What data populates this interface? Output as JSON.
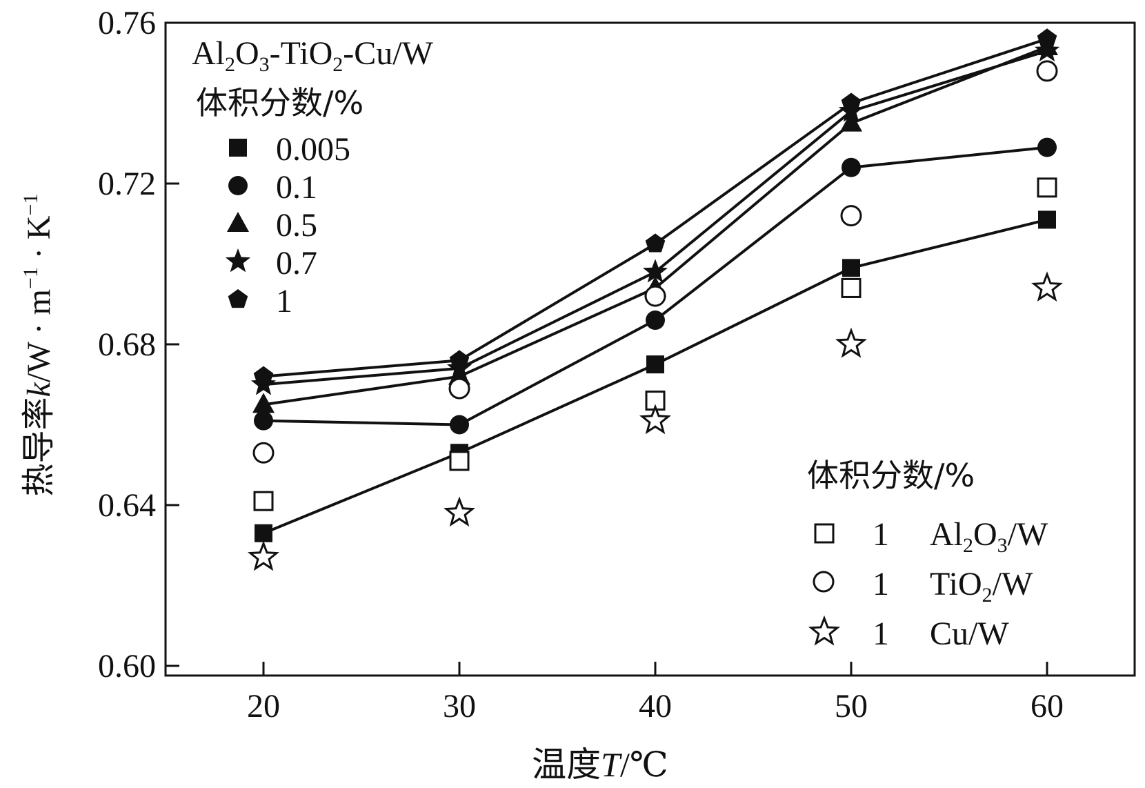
{
  "chart_data": {
    "type": "line",
    "xlabel": {
      "prefix": "温度",
      "var": "T",
      "unit": "/℃"
    },
    "ylabel": {
      "prefix": "热导率",
      "var": "k",
      "unit": "/W · m",
      "exp1": "−1",
      "mid": " · K",
      "exp2": "−1"
    },
    "x_ticks": [
      "20",
      "30",
      "40",
      "50",
      "60"
    ],
    "y_ticks": [
      "0.60",
      "0.64",
      "0.68",
      "0.72",
      "0.76"
    ],
    "xlim": [
      15,
      65
    ],
    "ylim": [
      0.6,
      0.76
    ],
    "x": [
      20,
      30,
      40,
      50,
      60
    ],
    "legend_top": {
      "title_line1": {
        "a": "Al",
        "s1": "2",
        "b": "O",
        "s2": "3",
        "c": "-TiO",
        "s3": "2",
        "d": "-Cu/W"
      },
      "title_line2": "体积分数/%"
    },
    "legend_bottom": {
      "title": "体积分数/%",
      "entries": [
        {
          "num": "1",
          "a": "Al",
          "s1": "2",
          "b": "O",
          "s2": "3",
          "c": "/W"
        },
        {
          "num": "1",
          "a": "TiO",
          "s1": "2",
          "c": "/W"
        },
        {
          "num": "1",
          "a": "Cu/W"
        }
      ]
    },
    "series": [
      {
        "name": "0.005",
        "marker": "square-filled",
        "line": true,
        "values": [
          0.633,
          0.653,
          0.675,
          0.699,
          0.711
        ]
      },
      {
        "name": "0.1",
        "marker": "circle-filled",
        "line": true,
        "values": [
          0.661,
          0.66,
          0.686,
          0.724,
          0.729
        ]
      },
      {
        "name": "0.5",
        "marker": "triangle-filled",
        "line": true,
        "values": [
          0.665,
          0.672,
          0.694,
          0.735,
          0.754
        ]
      },
      {
        "name": "0.7",
        "marker": "star-filled",
        "line": true,
        "values": [
          0.67,
          0.674,
          0.698,
          0.738,
          0.753
        ]
      },
      {
        "name": "1",
        "marker": "pentagon-filled",
        "line": true,
        "values": [
          0.672,
          0.676,
          0.705,
          0.74,
          0.756
        ]
      },
      {
        "name": "Al2O3/W 1",
        "marker": "square-open",
        "line": false,
        "values": [
          0.641,
          0.651,
          0.666,
          0.694,
          0.719
        ]
      },
      {
        "name": "TiO2/W 1",
        "marker": "circle-open",
        "line": false,
        "values": [
          0.653,
          0.669,
          0.692,
          0.712,
          0.748
        ]
      },
      {
        "name": "Cu/W 1",
        "marker": "star-open",
        "line": false,
        "values": [
          0.627,
          0.638,
          0.661,
          0.68,
          0.694
        ]
      }
    ]
  }
}
